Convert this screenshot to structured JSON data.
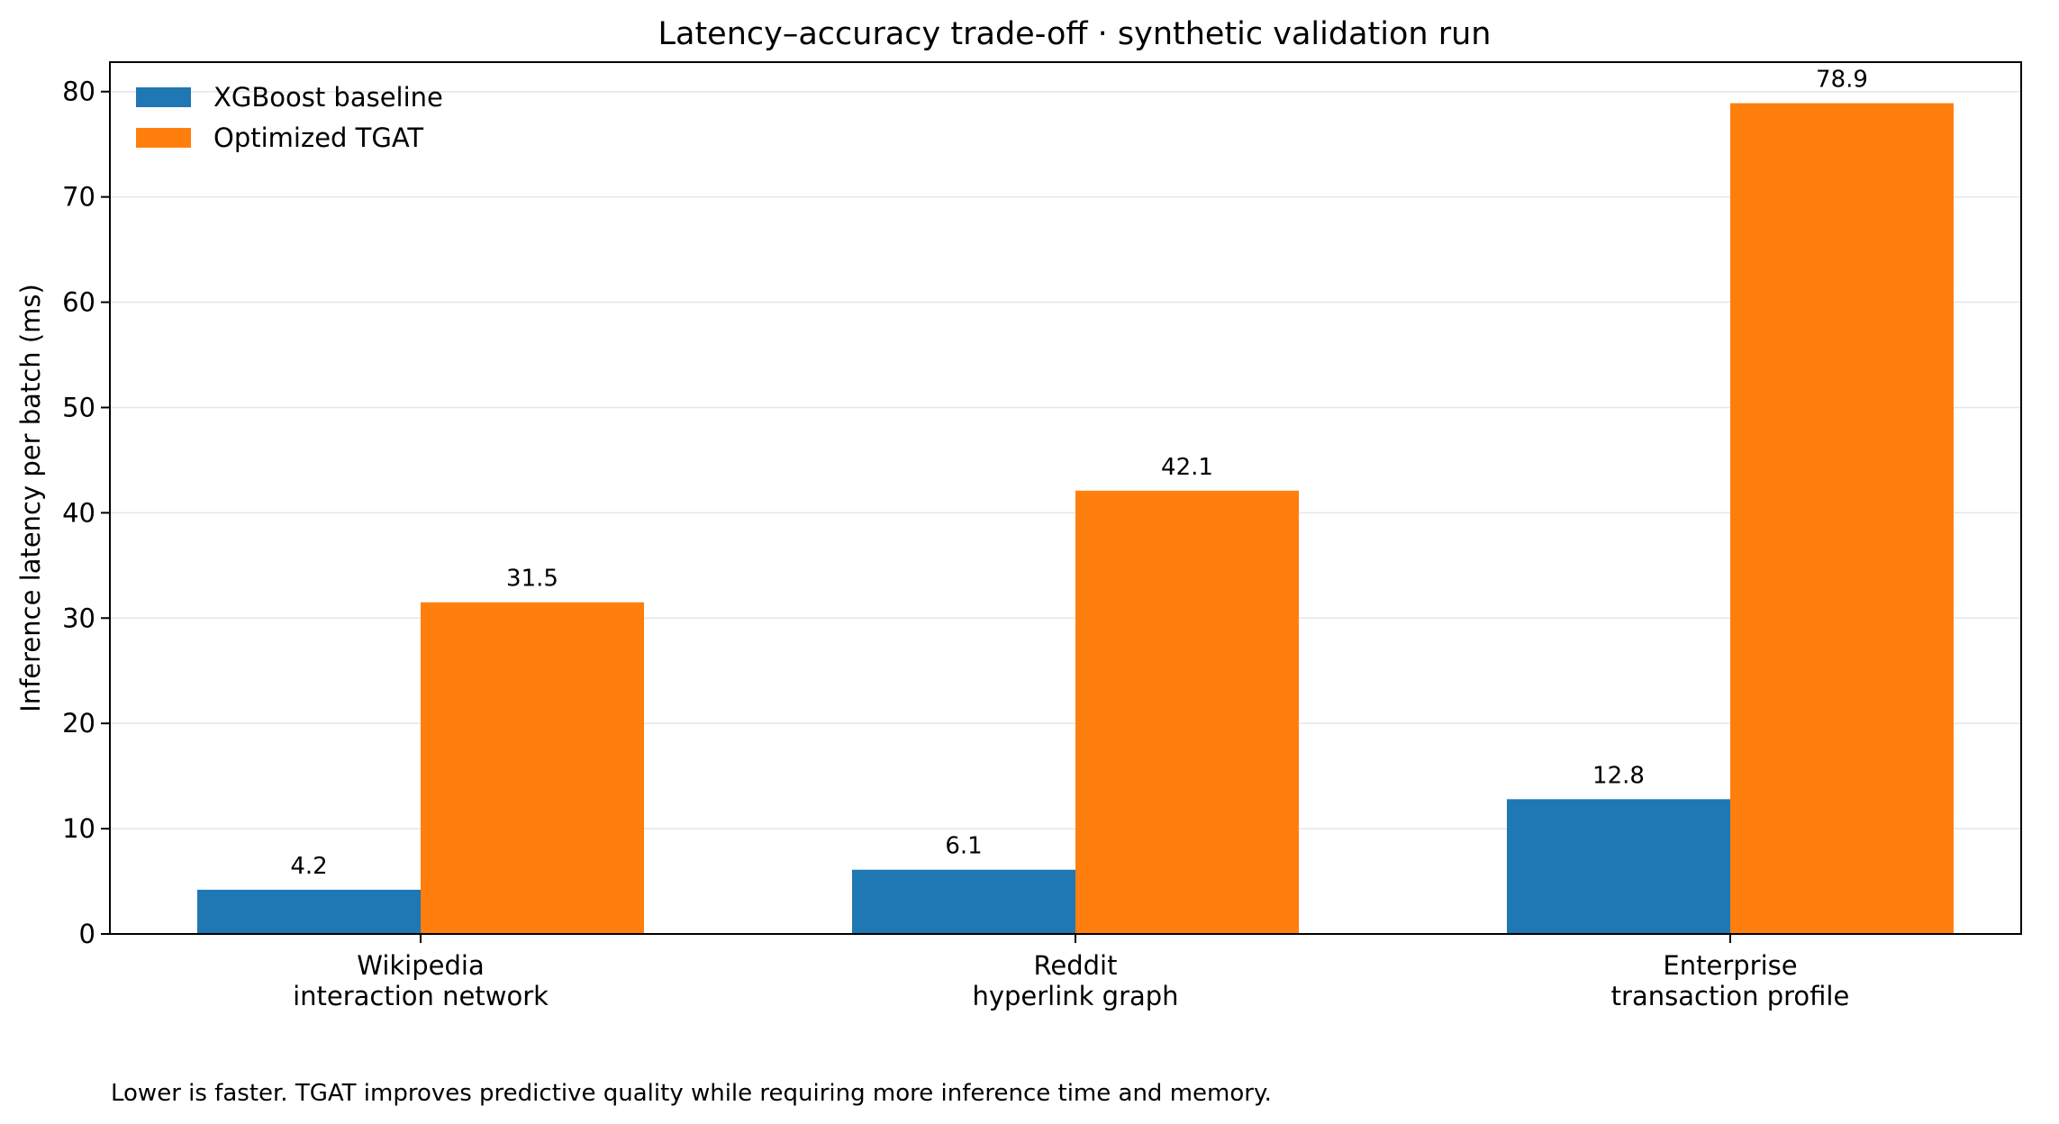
{
  "chart_data": {
    "type": "bar",
    "title": "Latency–accuracy trade-off · synthetic validation run",
    "xlabel": "",
    "ylabel": "Inference latency per batch (ms)",
    "categories": [
      [
        "Wikipedia",
        "interaction network"
      ],
      [
        "Reddit",
        "hyperlink graph"
      ],
      [
        "Enterprise",
        "transaction profile"
      ]
    ],
    "series": [
      {
        "name": "XGBoost baseline",
        "color": "#1f77b4",
        "values": [
          4.2,
          6.1,
          12.8
        ]
      },
      {
        "name": "Optimized TGAT",
        "color": "#ff7f0e",
        "values": [
          31.5,
          42.1,
          78.9
        ]
      }
    ],
    "ylim": [
      0,
      82.8
    ],
    "yticks": [
      0,
      10,
      20,
      30,
      40,
      50,
      60,
      70,
      80
    ],
    "grid": "horizontal",
    "legend": "top-left",
    "data_labels": true,
    "footnote": "Lower is faster. TGAT improves predictive quality while requiring more inference time and memory."
  }
}
